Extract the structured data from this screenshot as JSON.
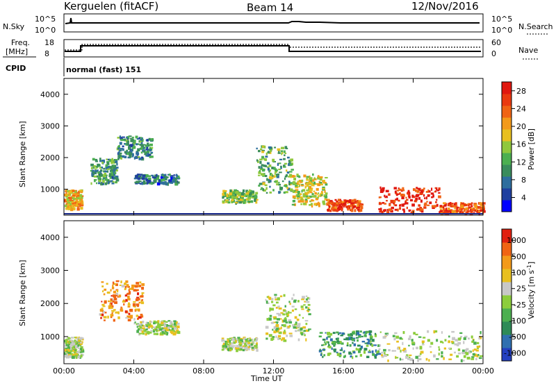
{
  "header": {
    "station": "Kerguelen (fitACF)",
    "beam": "Beam 14",
    "date": "12/Nov/2016"
  },
  "panels": {
    "nsky_label": "N.Sky",
    "nsearch_label": "N.Search",
    "nsky_ticks": [
      "10^5",
      "10^0"
    ],
    "nsearch_ticks": [
      "10^5",
      "10^0"
    ],
    "freq_label_line1": "Freq.",
    "freq_label_line2": "[MHz]",
    "freq_ticks": [
      "18",
      "8"
    ],
    "nave_label": "Nave",
    "nave_ticks": [
      "60",
      "0"
    ],
    "cpid_label": "CPID",
    "cpid_text": "normal (fast) 151"
  },
  "chart_data": [
    {
      "type": "heatmap",
      "name": "power",
      "ylabel": "Slant Range [km]",
      "xlabel": "",
      "yticks": [
        "4000",
        "3000",
        "2000",
        "1000"
      ],
      "ylim": [
        180,
        4500
      ],
      "colorbar": {
        "label": "Power [dB]",
        "ticks": [
          "28",
          "24",
          "20",
          "16",
          "12",
          "8",
          "4"
        ],
        "colors": [
          "#0000ff",
          "#1f3f9f",
          "#2e6e9e",
          "#3a8c5c",
          "#4caf50",
          "#90c83c",
          "#e8c020",
          "#f39a1a",
          "#f06414",
          "#ea3a10",
          "#e01810"
        ]
      },
      "bands": [
        {
          "t0": 0.0,
          "t1": 1.0,
          "r0": 400,
          "r1": 1000,
          "level": 0.65
        },
        {
          "t0": 1.5,
          "t1": 3.0,
          "r0": 1200,
          "r1": 2000,
          "level": 0.35
        },
        {
          "t0": 3.0,
          "t1": 5.0,
          "r0": 2000,
          "r1": 2700,
          "level": 0.3
        },
        {
          "t0": 4.0,
          "t1": 6.5,
          "r0": 1200,
          "r1": 1500,
          "level": 0.25
        },
        {
          "t0": 9.0,
          "t1": 11.0,
          "r0": 600,
          "r1": 1000,
          "level": 0.45
        },
        {
          "t0": 11.0,
          "t1": 13.0,
          "r0": 900,
          "r1": 2400,
          "level": 0.4
        },
        {
          "t0": 13.0,
          "t1": 15.0,
          "r0": 500,
          "r1": 1500,
          "level": 0.55
        },
        {
          "t0": 15.0,
          "t1": 17.0,
          "r0": 350,
          "r1": 700,
          "level": 0.85
        },
        {
          "t0": 18.0,
          "t1": 21.5,
          "r0": 300,
          "r1": 1100,
          "level": 0.9
        },
        {
          "t0": 21.5,
          "t1": 24.0,
          "r0": 250,
          "r1": 600,
          "level": 0.8
        }
      ]
    },
    {
      "type": "heatmap",
      "name": "velocity",
      "ylabel": "Slant Range [km]",
      "xlabel": "Time UT",
      "xticks": [
        "00:00",
        "04:00",
        "08:00",
        "12:00",
        "16:00",
        "20:00",
        "00:00"
      ],
      "yticks": [
        "4000",
        "3000",
        "2000",
        "1000"
      ],
      "ylim": [
        180,
        4500
      ],
      "colorbar": {
        "label": "Velocity [m s^-1]",
        "ticks": [
          "1000",
          "500",
          "100",
          "25",
          "-25",
          "-100",
          "-500",
          "-1000"
        ],
        "colors": [
          "#2440c0",
          "#3070b0",
          "#2e8b57",
          "#4caf50",
          "#8ccd3c",
          "#c8c8c8",
          "#e8c020",
          "#f39a1a",
          "#f06414",
          "#e02010"
        ]
      },
      "bands": [
        {
          "t0": 0.0,
          "t1": 1.0,
          "r0": 400,
          "r1": 1000,
          "level": 0.5
        },
        {
          "t0": 2.0,
          "t1": 4.5,
          "r0": 1500,
          "r1": 2700,
          "level": 0.75
        },
        {
          "t0": 4.0,
          "t1": 6.5,
          "r0": 1100,
          "r1": 1500,
          "level": 0.5
        },
        {
          "t0": 9.0,
          "t1": 11.0,
          "r0": 600,
          "r1": 1000,
          "level": 0.5
        },
        {
          "t0": 11.5,
          "t1": 14.0,
          "r0": 900,
          "r1": 2300,
          "level": 0.5
        },
        {
          "t0": 14.5,
          "t1": 18.0,
          "r0": 400,
          "r1": 1200,
          "level": 0.3
        },
        {
          "t0": 18.0,
          "t1": 24.0,
          "r0": 300,
          "r1": 1200,
          "level": 0.5
        }
      ]
    }
  ]
}
